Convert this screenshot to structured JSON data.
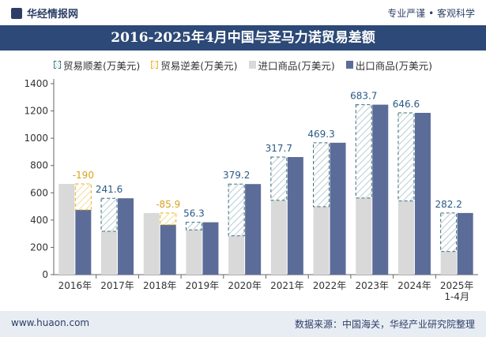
{
  "header": {
    "site_name": "华经情报网",
    "right_text": "专业严谨 • 客观科学"
  },
  "title": "2016-2025年4月中国与圣马力诺贸易差额",
  "footer": {
    "website": "www.huaon.com",
    "source": "数据来源：中国海关，华经产业研究院整理"
  },
  "colors": {
    "import": "#d9d9d9",
    "export": "#5b6c99",
    "surplus": "#3b6e7b",
    "deficit": "#e6b422",
    "title_bg": "#2c4977"
  },
  "chart_data": {
    "type": "bar",
    "categories": [
      "2016年",
      "2017年",
      "2018年",
      "2019年",
      "2020年",
      "2021年",
      "2022年",
      "2023年",
      "2024年",
      "2025年1-4月"
    ],
    "series": [
      {
        "name": "进口商品(万美元)",
        "values": [
          665,
          318,
          452,
          328,
          285,
          545,
          498,
          562,
          540,
          170
        ]
      },
      {
        "name": "出口商品(万美元)",
        "values": [
          475,
          560,
          366,
          384,
          664,
          862,
          967,
          1246,
          1186,
          452
        ]
      }
    ],
    "balance": {
      "surplus_name": "贸易顺差(万美元)",
      "deficit_name": "贸易逆差(万美元)",
      "values": [
        -190,
        241.6,
        -85.9,
        56.3,
        379.2,
        317.7,
        469.3,
        683.7,
        646.6,
        282.2
      ]
    },
    "balance_labels": [
      "-190",
      "241.6",
      "-85.9",
      "56.3",
      "379.2",
      "317.7",
      "469.3",
      "683.7",
      "646.6",
      "282.2"
    ],
    "ylim": [
      0,
      1400
    ],
    "yticks": [
      0,
      200,
      400,
      600,
      800,
      1000,
      1200,
      1400
    ],
    "legend_position": "top-center",
    "grid": false
  }
}
